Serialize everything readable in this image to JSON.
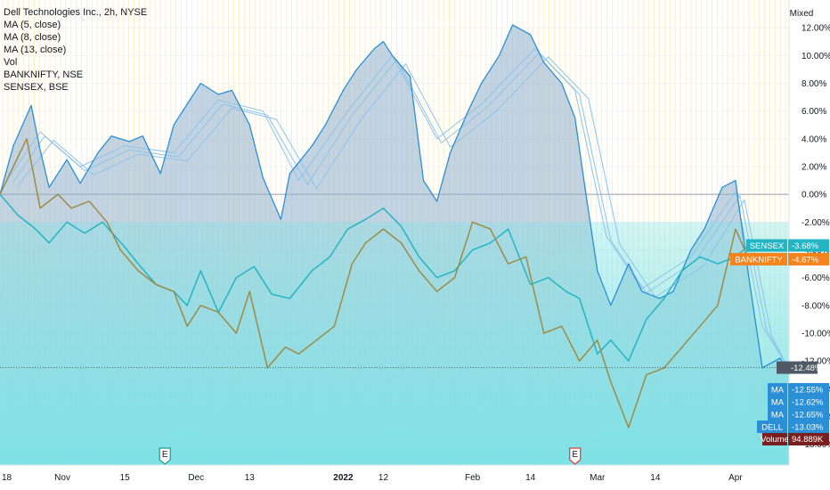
{
  "legend": [
    "Dell Technologies Inc., 2h, NYSE",
    "MA (5, close)",
    "MA (8, close)",
    "MA (13, close)",
    "Vol",
    "BANKNIFTY, NSE",
    "SENSEX, BSE"
  ],
  "scale_mode_label": "Mixed",
  "colors": {
    "dell": "#2a8fd6",
    "dell_fill": "#8fb1cc",
    "ma": "#8cc3ec",
    "volume": "#7be3e6",
    "sensex": "#23b5c4",
    "banknifty": "#9e8a45",
    "banknifty_tag": "#f5841f",
    "grid": "#fdeecb",
    "zero_line": "#9aa0aa"
  },
  "chart_data": {
    "type": "line",
    "title": "Dell Technologies Inc., 2h, NYSE",
    "y_unit": "%",
    "ylim": [
      -19.5,
      14.0
    ],
    "y_ticks": [
      12,
      10,
      8,
      6,
      4,
      2,
      0,
      -2,
      -4,
      -6,
      -8,
      -10,
      -12,
      -14,
      -16,
      -18
    ],
    "y_tick_labels": [
      "12.00%",
      "10.00%",
      "8.00%",
      "6.00%",
      "4.00%",
      "2.00%",
      "0.00%",
      "-2.00%",
      "-4.00%",
      "-6.00%",
      "-8.00%",
      "-10.00%",
      "-12.00%",
      "-14.00%",
      "-16.00%",
      "-18.00%"
    ],
    "x_ticks": [
      {
        "label": "18",
        "bold": false
      },
      {
        "label": "Nov",
        "bold": false
      },
      {
        "label": "15",
        "bold": false
      },
      {
        "label": "Dec",
        "bold": false
      },
      {
        "label": "13",
        "bold": false
      },
      {
        "label": "2022",
        "bold": true
      },
      {
        "label": "12",
        "bold": false
      },
      {
        "label": "Feb",
        "bold": false
      },
      {
        "label": "14",
        "bold": false
      },
      {
        "label": "Mar",
        "bold": false
      },
      {
        "label": "14",
        "bold": false
      },
      {
        "label": "Apr",
        "bold": false
      }
    ],
    "x_domain": [
      "2021-10-18",
      "2022-04-13"
    ],
    "x_tick_dates": [
      "2021-10-18",
      "2021-11-01",
      "2021-11-15",
      "2021-12-01",
      "2021-12-13",
      "2022-01-03",
      "2022-01-12",
      "2022-02-01",
      "2022-02-14",
      "2022-03-01",
      "2022-03-14",
      "2022-04-01"
    ],
    "series": [
      {
        "name": "DELL",
        "x": [
          "2021-10-18",
          "2021-10-21",
          "2021-10-25",
          "2021-10-27",
          "2021-10-29",
          "2021-11-02",
          "2021-11-05",
          "2021-11-09",
          "2021-11-12",
          "2021-11-16",
          "2021-11-19",
          "2021-11-23",
          "2021-11-26",
          "2021-11-29",
          "2021-12-02",
          "2021-12-06",
          "2021-12-09",
          "2021-12-13",
          "2021-12-16",
          "2021-12-20",
          "2021-12-22",
          "2021-12-27",
          "2021-12-30",
          "2022-01-03",
          "2022-01-06",
          "2022-01-10",
          "2022-01-12",
          "2022-01-14",
          "2022-01-18",
          "2022-01-21",
          "2022-01-24",
          "2022-01-27",
          "2022-01-31",
          "2022-02-03",
          "2022-02-07",
          "2022-02-10",
          "2022-02-14",
          "2022-02-17",
          "2022-02-21",
          "2022-02-24",
          "2022-02-26",
          "2022-03-01",
          "2022-03-04",
          "2022-03-08",
          "2022-03-11",
          "2022-03-15",
          "2022-03-18",
          "2022-03-22",
          "2022-03-25",
          "2022-03-29",
          "2022-04-01",
          "2022-04-04",
          "2022-04-07",
          "2022-04-11",
          "2022-04-13"
        ],
        "y": [
          0.0,
          3.5,
          6.4,
          3.2,
          0.5,
          2.5,
          0.8,
          3.0,
          4.2,
          3.8,
          4.2,
          1.5,
          5.0,
          6.5,
          8.0,
          7.2,
          7.5,
          5.0,
          1.2,
          -1.8,
          1.5,
          3.5,
          5.0,
          7.5,
          9.0,
          10.5,
          11.0,
          10.0,
          8.5,
          1.0,
          -0.5,
          3.0,
          6.0,
          8.0,
          10.0,
          12.2,
          11.5,
          9.5,
          8.0,
          5.5,
          1.0,
          -5.5,
          -8.0,
          -5.0,
          -7.0,
          -7.5,
          -7.0,
          -4.0,
          -2.5,
          0.5,
          1.0,
          -6.0,
          -12.5,
          -11.8,
          -13.0
        ]
      },
      {
        "name": "MA",
        "x": [
          "2021-10-20",
          "2021-10-27",
          "2021-11-05",
          "2021-11-15",
          "2021-11-26",
          "2021-12-06",
          "2021-12-16",
          "2021-12-24",
          "2022-01-04",
          "2022-01-14",
          "2022-01-24",
          "2022-02-03",
          "2022-02-15",
          "2022-02-24",
          "2022-03-03",
          "2022-03-11",
          "2022-03-22",
          "2022-04-01",
          "2022-04-07",
          "2022-04-13"
        ],
        "y": [
          1.2,
          4.5,
          2.0,
          3.5,
          3.0,
          6.8,
          6.0,
          1.0,
          6.0,
          10.0,
          4.0,
          6.5,
          10.5,
          7.5,
          -3.0,
          -6.8,
          -4.5,
          0.2,
          -9.5,
          -12.55
        ]
      },
      {
        "name": "MA",
        "x": [
          "2021-10-21",
          "2021-10-28",
          "2021-11-06",
          "2021-11-16",
          "2021-11-27",
          "2021-12-07",
          "2021-12-17",
          "2021-12-26",
          "2022-01-05",
          "2022-01-15",
          "2022-01-25",
          "2022-02-04",
          "2022-02-16",
          "2022-02-25",
          "2022-03-04",
          "2022-03-12",
          "2022-03-23",
          "2022-04-02",
          "2022-04-08",
          "2022-04-13"
        ],
        "y": [
          0.9,
          4.2,
          1.7,
          3.2,
          2.7,
          6.5,
          5.7,
          0.7,
          5.7,
          9.7,
          3.7,
          6.2,
          10.2,
          7.2,
          -3.3,
          -7.1,
          -4.8,
          -0.1,
          -9.8,
          -12.62
        ]
      },
      {
        "name": "MA",
        "x": [
          "2021-10-22",
          "2021-10-30",
          "2021-11-08",
          "2021-11-18",
          "2021-11-29",
          "2021-12-09",
          "2021-12-19",
          "2021-12-28",
          "2022-01-07",
          "2022-01-17",
          "2022-01-27",
          "2022-02-06",
          "2022-02-18",
          "2022-02-27",
          "2022-03-06",
          "2022-03-14",
          "2022-03-25",
          "2022-04-03",
          "2022-04-09",
          "2022-04-13"
        ],
        "y": [
          0.6,
          3.9,
          1.4,
          2.9,
          2.4,
          6.2,
          5.4,
          0.4,
          5.4,
          9.4,
          3.4,
          5.9,
          9.9,
          6.9,
          -3.6,
          -7.4,
          -5.1,
          -0.4,
          -10.1,
          -12.65
        ]
      },
      {
        "name": "SENSEX",
        "x": [
          "2021-10-18",
          "2021-10-22",
          "2021-10-26",
          "2021-10-29",
          "2021-11-02",
          "2021-11-06",
          "2021-11-10",
          "2021-11-15",
          "2021-11-18",
          "2021-11-22",
          "2021-11-26",
          "2021-11-29",
          "2021-12-02",
          "2021-12-06",
          "2021-12-10",
          "2021-12-14",
          "2021-12-18",
          "2021-12-22",
          "2021-12-27",
          "2021-12-31",
          "2022-01-04",
          "2022-01-08",
          "2022-01-12",
          "2022-01-16",
          "2022-01-20",
          "2022-01-24",
          "2022-01-28",
          "2022-02-01",
          "2022-02-05",
          "2022-02-09",
          "2022-02-14",
          "2022-02-18",
          "2022-02-22",
          "2022-02-25",
          "2022-03-01",
          "2022-03-04",
          "2022-03-08",
          "2022-03-12",
          "2022-03-16",
          "2022-03-20",
          "2022-03-24",
          "2022-03-28",
          "2022-04-01",
          "2022-04-04"
        ],
        "y": [
          0.0,
          -1.5,
          -2.5,
          -3.5,
          -2.0,
          -2.8,
          -2.0,
          -3.8,
          -5.0,
          -6.5,
          -7.0,
          -8.0,
          -5.5,
          -8.5,
          -6.0,
          -5.2,
          -7.2,
          -7.5,
          -5.5,
          -4.5,
          -2.5,
          -1.8,
          -1.0,
          -2.3,
          -4.5,
          -6.0,
          -5.5,
          -4.0,
          -3.5,
          -2.5,
          -6.5,
          -6.0,
          -7.0,
          -7.5,
          -11.5,
          -10.5,
          -12.0,
          -9.0,
          -7.5,
          -5.5,
          -4.5,
          -5.0,
          -4.5,
          -3.68
        ]
      },
      {
        "name": "BANKNIFTY",
        "x": [
          "2021-10-18",
          "2021-10-21",
          "2021-10-24",
          "2021-10-27",
          "2021-10-31",
          "2021-11-03",
          "2021-11-07",
          "2021-11-11",
          "2021-11-14",
          "2021-11-18",
          "2021-11-22",
          "2021-11-26",
          "2021-11-29",
          "2021-12-02",
          "2021-12-06",
          "2021-12-10",
          "2021-12-13",
          "2021-12-17",
          "2021-12-21",
          "2021-12-24",
          "2021-12-28",
          "2022-01-01",
          "2022-01-05",
          "2022-01-08",
          "2022-01-12",
          "2022-01-16",
          "2022-01-20",
          "2022-01-24",
          "2022-01-28",
          "2022-02-01",
          "2022-02-05",
          "2022-02-09",
          "2022-02-13",
          "2022-02-17",
          "2022-02-21",
          "2022-02-25",
          "2022-03-01",
          "2022-03-04",
          "2022-03-08",
          "2022-03-12",
          "2022-03-16",
          "2022-03-20",
          "2022-03-24",
          "2022-03-28",
          "2022-04-01",
          "2022-04-04"
        ],
        "y": [
          0.0,
          2.0,
          4.0,
          -1.0,
          0.0,
          -1.0,
          -0.5,
          -2.0,
          -4.0,
          -5.5,
          -6.5,
          -7.0,
          -9.5,
          -8.0,
          -8.5,
          -10.0,
          -7.0,
          -12.5,
          -11.0,
          -11.5,
          -10.5,
          -9.5,
          -5.0,
          -3.5,
          -2.5,
          -3.5,
          -5.5,
          -7.0,
          -6.0,
          -2.0,
          -2.5,
          -5.0,
          -4.5,
          -10.0,
          -9.5,
          -12.0,
          -10.5,
          -13.5,
          -16.8,
          -13.0,
          -12.5,
          -11.0,
          -9.5,
          -8.0,
          -2.5,
          -4.67
        ]
      }
    ],
    "volume_label": "Volume",
    "volume_last": "94.889K",
    "price_line_value": -12.48,
    "price_line_label": "-12.48%",
    "last_value_tags": [
      {
        "label": "SENSEX",
        "value": -3.68,
        "text": "-3.68%",
        "color": "#23b5c4"
      },
      {
        "label": "BANKNIFTY",
        "value": -4.67,
        "text": "-4.67%",
        "color": "#f5841f"
      },
      {
        "label": "MA",
        "value": -12.55,
        "text": "-12.55%",
        "color": "#2a8fd6"
      },
      {
        "label": "MA",
        "value": -12.62,
        "text": "-12.62%",
        "color": "#2a8fd6"
      },
      {
        "label": "MA",
        "value": -12.65,
        "text": "-12.65%",
        "color": "#2a8fd6"
      },
      {
        "label": "DELL",
        "value": -13.03,
        "text": "-13.03%",
        "color": "#2a8fd6"
      }
    ],
    "events": [
      {
        "date": "2021-11-24",
        "label": "E"
      },
      {
        "date": "2022-02-24",
        "label": "E"
      }
    ],
    "grid": true,
    "legend_position": "top-left"
  }
}
